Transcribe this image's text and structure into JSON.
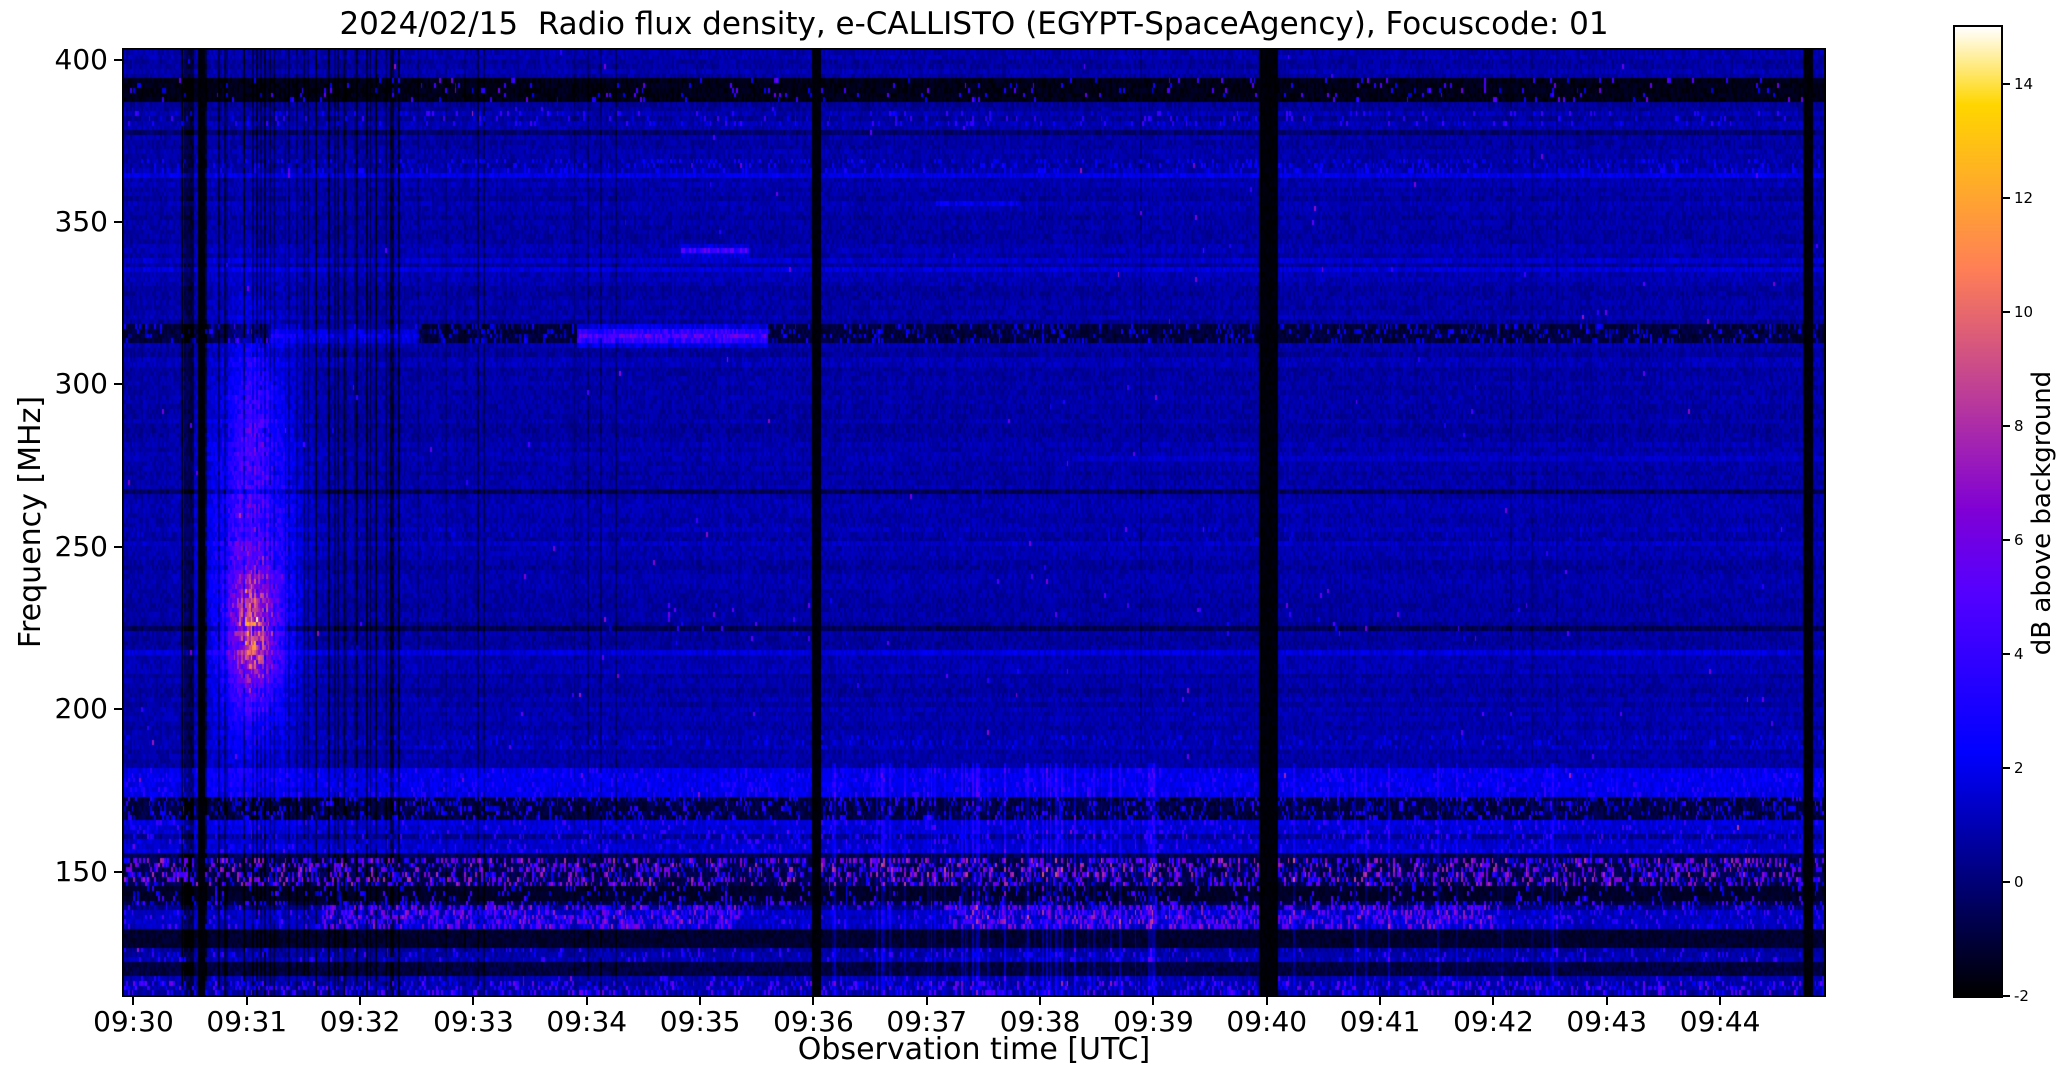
{
  "chart_data": {
    "type": "heatmap",
    "title": "2024/02/15  Radio flux density, e-CALLISTO (EGYPT-SpaceAgency), Focuscode: 01",
    "xlabel": "Observation time [UTC]",
    "ylabel": "Frequency [MHz]",
    "x_start": "09:29:55",
    "x_end": "09:44:55",
    "x_range_seconds": [
      -5,
      895
    ],
    "y_range_mhz": [
      112,
      403
    ],
    "yticks_mhz": [
      400,
      350,
      300,
      250,
      200,
      150
    ],
    "xticks": [
      {
        "t": 0,
        "label": "09:30"
      },
      {
        "t": 60,
        "label": "09:31"
      },
      {
        "t": 120,
        "label": "09:32"
      },
      {
        "t": 180,
        "label": "09:33"
      },
      {
        "t": 240,
        "label": "09:34"
      },
      {
        "t": 300,
        "label": "09:35"
      },
      {
        "t": 360,
        "label": "09:36"
      },
      {
        "t": 420,
        "label": "09:37"
      },
      {
        "t": 480,
        "label": "09:38"
      },
      {
        "t": 540,
        "label": "09:39"
      },
      {
        "t": 600,
        "label": "09:40"
      },
      {
        "t": 660,
        "label": "09:41"
      },
      {
        "t": 720,
        "label": "09:42"
      },
      {
        "t": 780,
        "label": "09:43"
      },
      {
        "t": 840,
        "label": "09:44"
      }
    ],
    "colorbar": {
      "label": "dB above background",
      "range_db": [
        -2,
        15
      ],
      "ticks_db": [
        -2,
        0,
        2,
        4,
        6,
        8,
        10,
        12,
        14
      ],
      "colormap": "gnuplot2"
    },
    "background_level_db": 0.8,
    "grid": false,
    "features": [
      {
        "type": "hband",
        "f1": 387,
        "f2": 393,
        "set": -1.6,
        "jitter": 0.7
      },
      {
        "type": "speckle",
        "f1": 387,
        "f2": 393,
        "t1": -5,
        "t2": 895,
        "density": 0.05,
        "amin": 1.5,
        "amax": 6
      },
      {
        "type": "speckle",
        "f1": 381,
        "f2": 384,
        "t1": -5,
        "t2": 895,
        "density": 0.12,
        "amin": 0.8,
        "amax": 4.5
      },
      {
        "type": "speckle",
        "f1": 366,
        "f2": 369,
        "t1": -5,
        "t2": 895,
        "density": 0.3,
        "amin": 0.5,
        "amax": 3
      },
      {
        "type": "hband",
        "f1": 313.5,
        "f2": 318,
        "set": -1.0,
        "jitter": 1.0
      },
      {
        "type": "speckle",
        "f1": 313.5,
        "f2": 318,
        "t1": -5,
        "t2": 895,
        "density": 0.18,
        "amin": 0.5,
        "amax": 3
      },
      {
        "type": "hseg",
        "f": 315.5,
        "df": 3,
        "t1": 235,
        "t2": 335,
        "amp": 5.5
      },
      {
        "type": "hseg",
        "f": 315.5,
        "df": 2.5,
        "t1": 72,
        "t2": 150,
        "amp": 2.4
      },
      {
        "type": "hseg",
        "f": 341,
        "df": 2,
        "t1": 290,
        "t2": 325,
        "amp": 5
      },
      {
        "type": "hseg",
        "f": 355,
        "df": 2,
        "t1": 425,
        "t2": 468,
        "amp": 2.2
      },
      {
        "type": "hseg",
        "f": 277,
        "df": 1.5,
        "t1": 500,
        "t2": 895,
        "amp": 1.5
      },
      {
        "type": "blob",
        "t": 63,
        "f": 250,
        "dt": 16,
        "df": 45,
        "amp": 3.2
      },
      {
        "type": "blob",
        "t": 63,
        "f": 224,
        "dt": 9,
        "df": 15,
        "amp": 6.5
      },
      {
        "type": "blob",
        "t": 64,
        "f": 286,
        "dt": 7,
        "df": 18,
        "amp": 2.2
      },
      {
        "type": "speckle",
        "f1": 253,
        "f2": 256,
        "t1": -5,
        "t2": 895,
        "density": 0.1,
        "amin": 0.5,
        "amax": 2
      },
      {
        "type": "speckle",
        "f1": 189,
        "f2": 192,
        "t1": -5,
        "t2": 895,
        "density": 0.25,
        "amin": 0.5,
        "amax": 2.5
      },
      {
        "type": "hband",
        "f1": 174,
        "f2": 181,
        "add": 1.1
      },
      {
        "type": "speckle",
        "f1": 174,
        "f2": 181,
        "t1": -5,
        "t2": 895,
        "density": 0.3,
        "amin": 1,
        "amax": 4
      },
      {
        "type": "hband",
        "f1": 166,
        "f2": 173,
        "set": -0.9,
        "jitter": 1.1
      },
      {
        "type": "speckle",
        "f1": 166,
        "f2": 173,
        "t1": -5,
        "t2": 895,
        "density": 0.22,
        "amin": 0.5,
        "amax": 4
      },
      {
        "type": "hband",
        "f1": 157,
        "f2": 165,
        "add": 0.7
      },
      {
        "type": "speckle",
        "f1": 157,
        "f2": 165,
        "t1": -5,
        "t2": 895,
        "density": 0.18,
        "amin": 1,
        "amax": 4.5
      },
      {
        "type": "hband",
        "f1": 146,
        "f2": 153,
        "set": -0.7,
        "jitter": 1.3
      },
      {
        "type": "speckle",
        "f1": 146,
        "f2": 153,
        "t1": -5,
        "t2": 895,
        "density": 0.4,
        "amin": 1.5,
        "amax": 8
      },
      {
        "type": "hband",
        "f1": 141,
        "f2": 145,
        "set": -1.3,
        "jitter": 0.6
      },
      {
        "type": "speckle",
        "f1": 141,
        "f2": 145,
        "t1": -5,
        "t2": 895,
        "density": 0.1,
        "amin": 1,
        "amax": 5
      },
      {
        "type": "hband",
        "f1": 132,
        "f2": 140,
        "add": 0.5
      },
      {
        "type": "speckle",
        "f1": 133,
        "f2": 139,
        "t1": 100,
        "t2": 320,
        "density": 0.45,
        "amin": 2,
        "amax": 7.5
      },
      {
        "type": "speckle",
        "f1": 133,
        "f2": 139,
        "t1": 430,
        "t2": 720,
        "density": 0.45,
        "amin": 2,
        "amax": 7.5
      },
      {
        "type": "speckle",
        "f1": 132,
        "f2": 140,
        "t1": -5,
        "t2": 895,
        "density": 0.18,
        "amin": 1,
        "amax": 5
      },
      {
        "type": "hband",
        "f1": 127,
        "f2": 131,
        "set": -1.2,
        "jitter": 0.7
      },
      {
        "type": "speckle",
        "f1": 112,
        "f2": 126,
        "t1": -5,
        "t2": 895,
        "density": 0.15,
        "amin": 0.5,
        "amax": 4.5
      },
      {
        "type": "hband",
        "f1": 118,
        "f2": 121,
        "set": -0.9,
        "jitter": 0.9
      },
      {
        "type": "speckle",
        "f1": 112,
        "f2": 116,
        "t1": -5,
        "t2": 895,
        "density": 0.25,
        "amin": 1,
        "amax": 6
      },
      {
        "type": "speckle",
        "f1": 222,
        "f2": 232,
        "t1": 560,
        "t2": 780,
        "density": 0.015,
        "amin": 2,
        "amax": 6
      },
      {
        "type": "speckle",
        "f1": 220,
        "f2": 234,
        "t1": 280,
        "t2": 380,
        "density": 0.012,
        "amin": 2,
        "amax": 6.5
      },
      {
        "type": "stripes",
        "t1": 25,
        "t2": 140,
        "density": 0.3,
        "depth": -1.5
      },
      {
        "type": "stripes",
        "t1": 140,
        "t2": 270,
        "density": 0.1,
        "depth": -0.9
      },
      {
        "type": "stripes",
        "t1": 370,
        "t2": 545,
        "f1": 112,
        "f2": 183,
        "density": 0.2,
        "depth": 1.3
      },
      {
        "type": "stripes",
        "t1": 600,
        "t2": 760,
        "f1": 112,
        "f2": 183,
        "density": 0.12,
        "depth": 1.0
      },
      {
        "type": "vgap",
        "t": 36,
        "dt": 2.5
      },
      {
        "type": "vgap",
        "t": 361,
        "dt": 4
      },
      {
        "type": "vgap",
        "t": 601,
        "dt": 9
      },
      {
        "type": "vgap",
        "t": 886,
        "dt": 4
      }
    ]
  }
}
